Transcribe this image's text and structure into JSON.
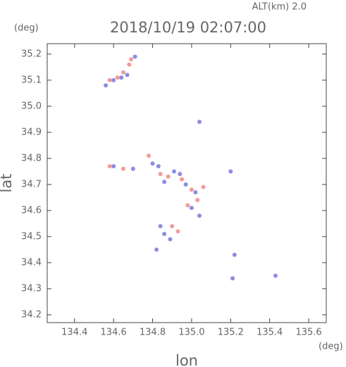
{
  "chart_data": {
    "type": "scatter",
    "title": "2018/10/19 02:07:00",
    "annotations": [
      "ALT(km)  2.0",
      "(deg)",
      "(deg)"
    ],
    "xlabel": "lon",
    "ylabel": "lat",
    "xlim": [
      134.26,
      135.69
    ],
    "ylim": [
      34.17,
      35.24
    ],
    "xticks": [
      134.4,
      134.6,
      134.8,
      {
        "value": 135.0,
        "label": "135.0"
      },
      135.2,
      135.4,
      135.6
    ],
    "yticks": [
      34.2,
      34.3,
      34.4,
      34.5,
      34.6,
      34.7,
      34.8,
      34.9,
      {
        "value": 35.0,
        "label": "35.0"
      },
      35.1,
      35.2
    ],
    "series": [
      {
        "color": "#f08888",
        "x": [
          134.58,
          134.62,
          134.65,
          134.68,
          134.69,
          134.58,
          134.65,
          134.78,
          134.84,
          134.88,
          134.95,
          135.0,
          135.06,
          135.03,
          134.98,
          134.93,
          134.9
        ],
        "y": [
          35.1,
          35.11,
          35.13,
          35.16,
          35.18,
          34.77,
          34.76,
          34.81,
          34.74,
          34.73,
          34.72,
          34.68,
          34.69,
          34.64,
          34.62,
          34.52,
          34.54
        ]
      },
      {
        "color": "#7878e0",
        "x": [
          134.56,
          134.6,
          134.67,
          134.71,
          134.64,
          134.6,
          134.7,
          134.8,
          134.83,
          134.86,
          134.91,
          134.94,
          134.97,
          135.02,
          135.0,
          135.04,
          135.2,
          134.86,
          134.84,
          134.89,
          134.82,
          135.21,
          135.43,
          135.04,
          135.22
        ],
        "y": [
          35.08,
          35.1,
          35.12,
          35.19,
          35.11,
          34.77,
          34.76,
          34.78,
          34.77,
          34.71,
          34.75,
          34.74,
          34.7,
          34.67,
          34.61,
          34.58,
          34.75,
          34.51,
          34.54,
          34.49,
          34.45,
          34.34,
          34.35,
          34.94,
          34.43
        ]
      }
    ]
  }
}
